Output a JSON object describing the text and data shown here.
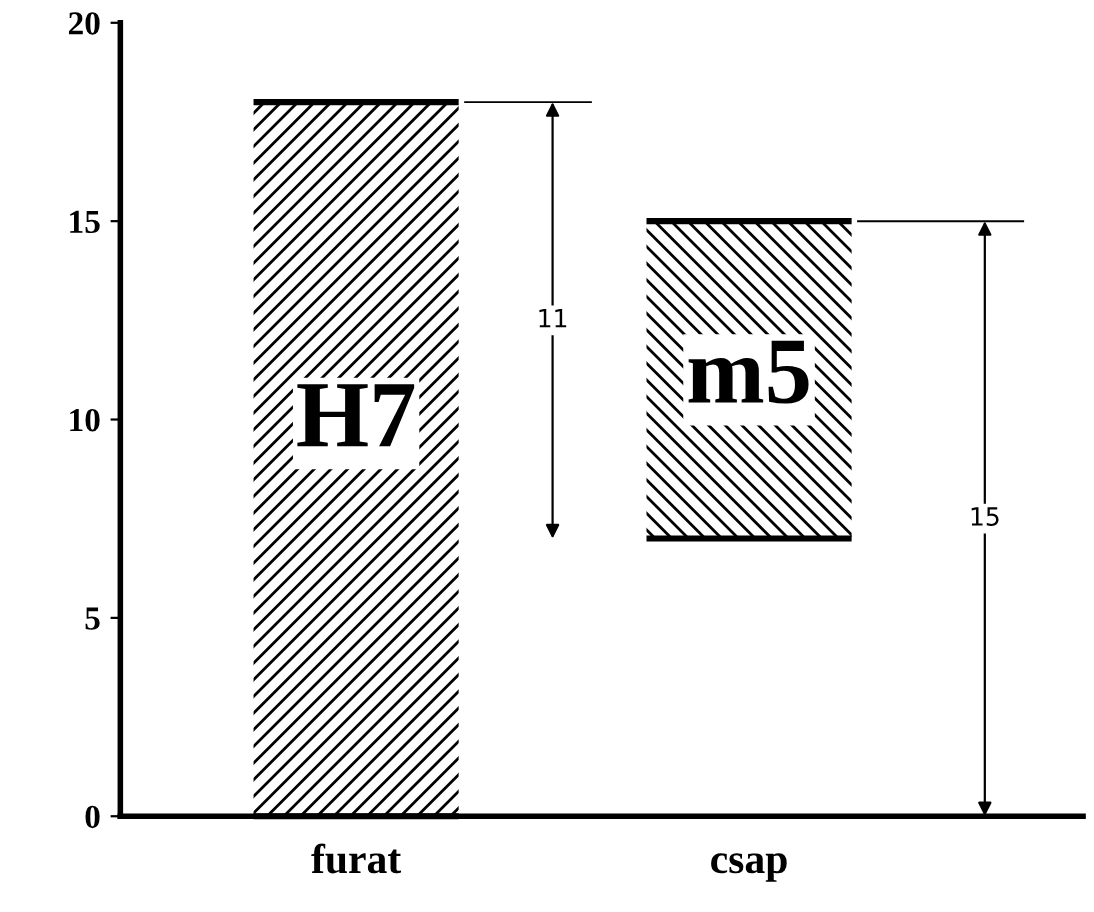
{
  "chart_data": {
    "type": "bar",
    "categories": [
      "furat",
      "csap"
    ],
    "values": [
      18,
      8
    ],
    "base": [
      0,
      7
    ],
    "colors": [
      "#000000",
      "#000000"
    ],
    "ylim": [
      0,
      20
    ],
    "yticks": [
      0,
      5,
      10,
      15,
      20
    ],
    "grid": false,
    "ref_lines": [
      {
        "axis": "y",
        "value": 18
      },
      {
        "axis": "y",
        "value": 15
      }
    ],
    "annotations": [
      "H7",
      "m5",
      "11",
      "15"
    ]
  }
}
